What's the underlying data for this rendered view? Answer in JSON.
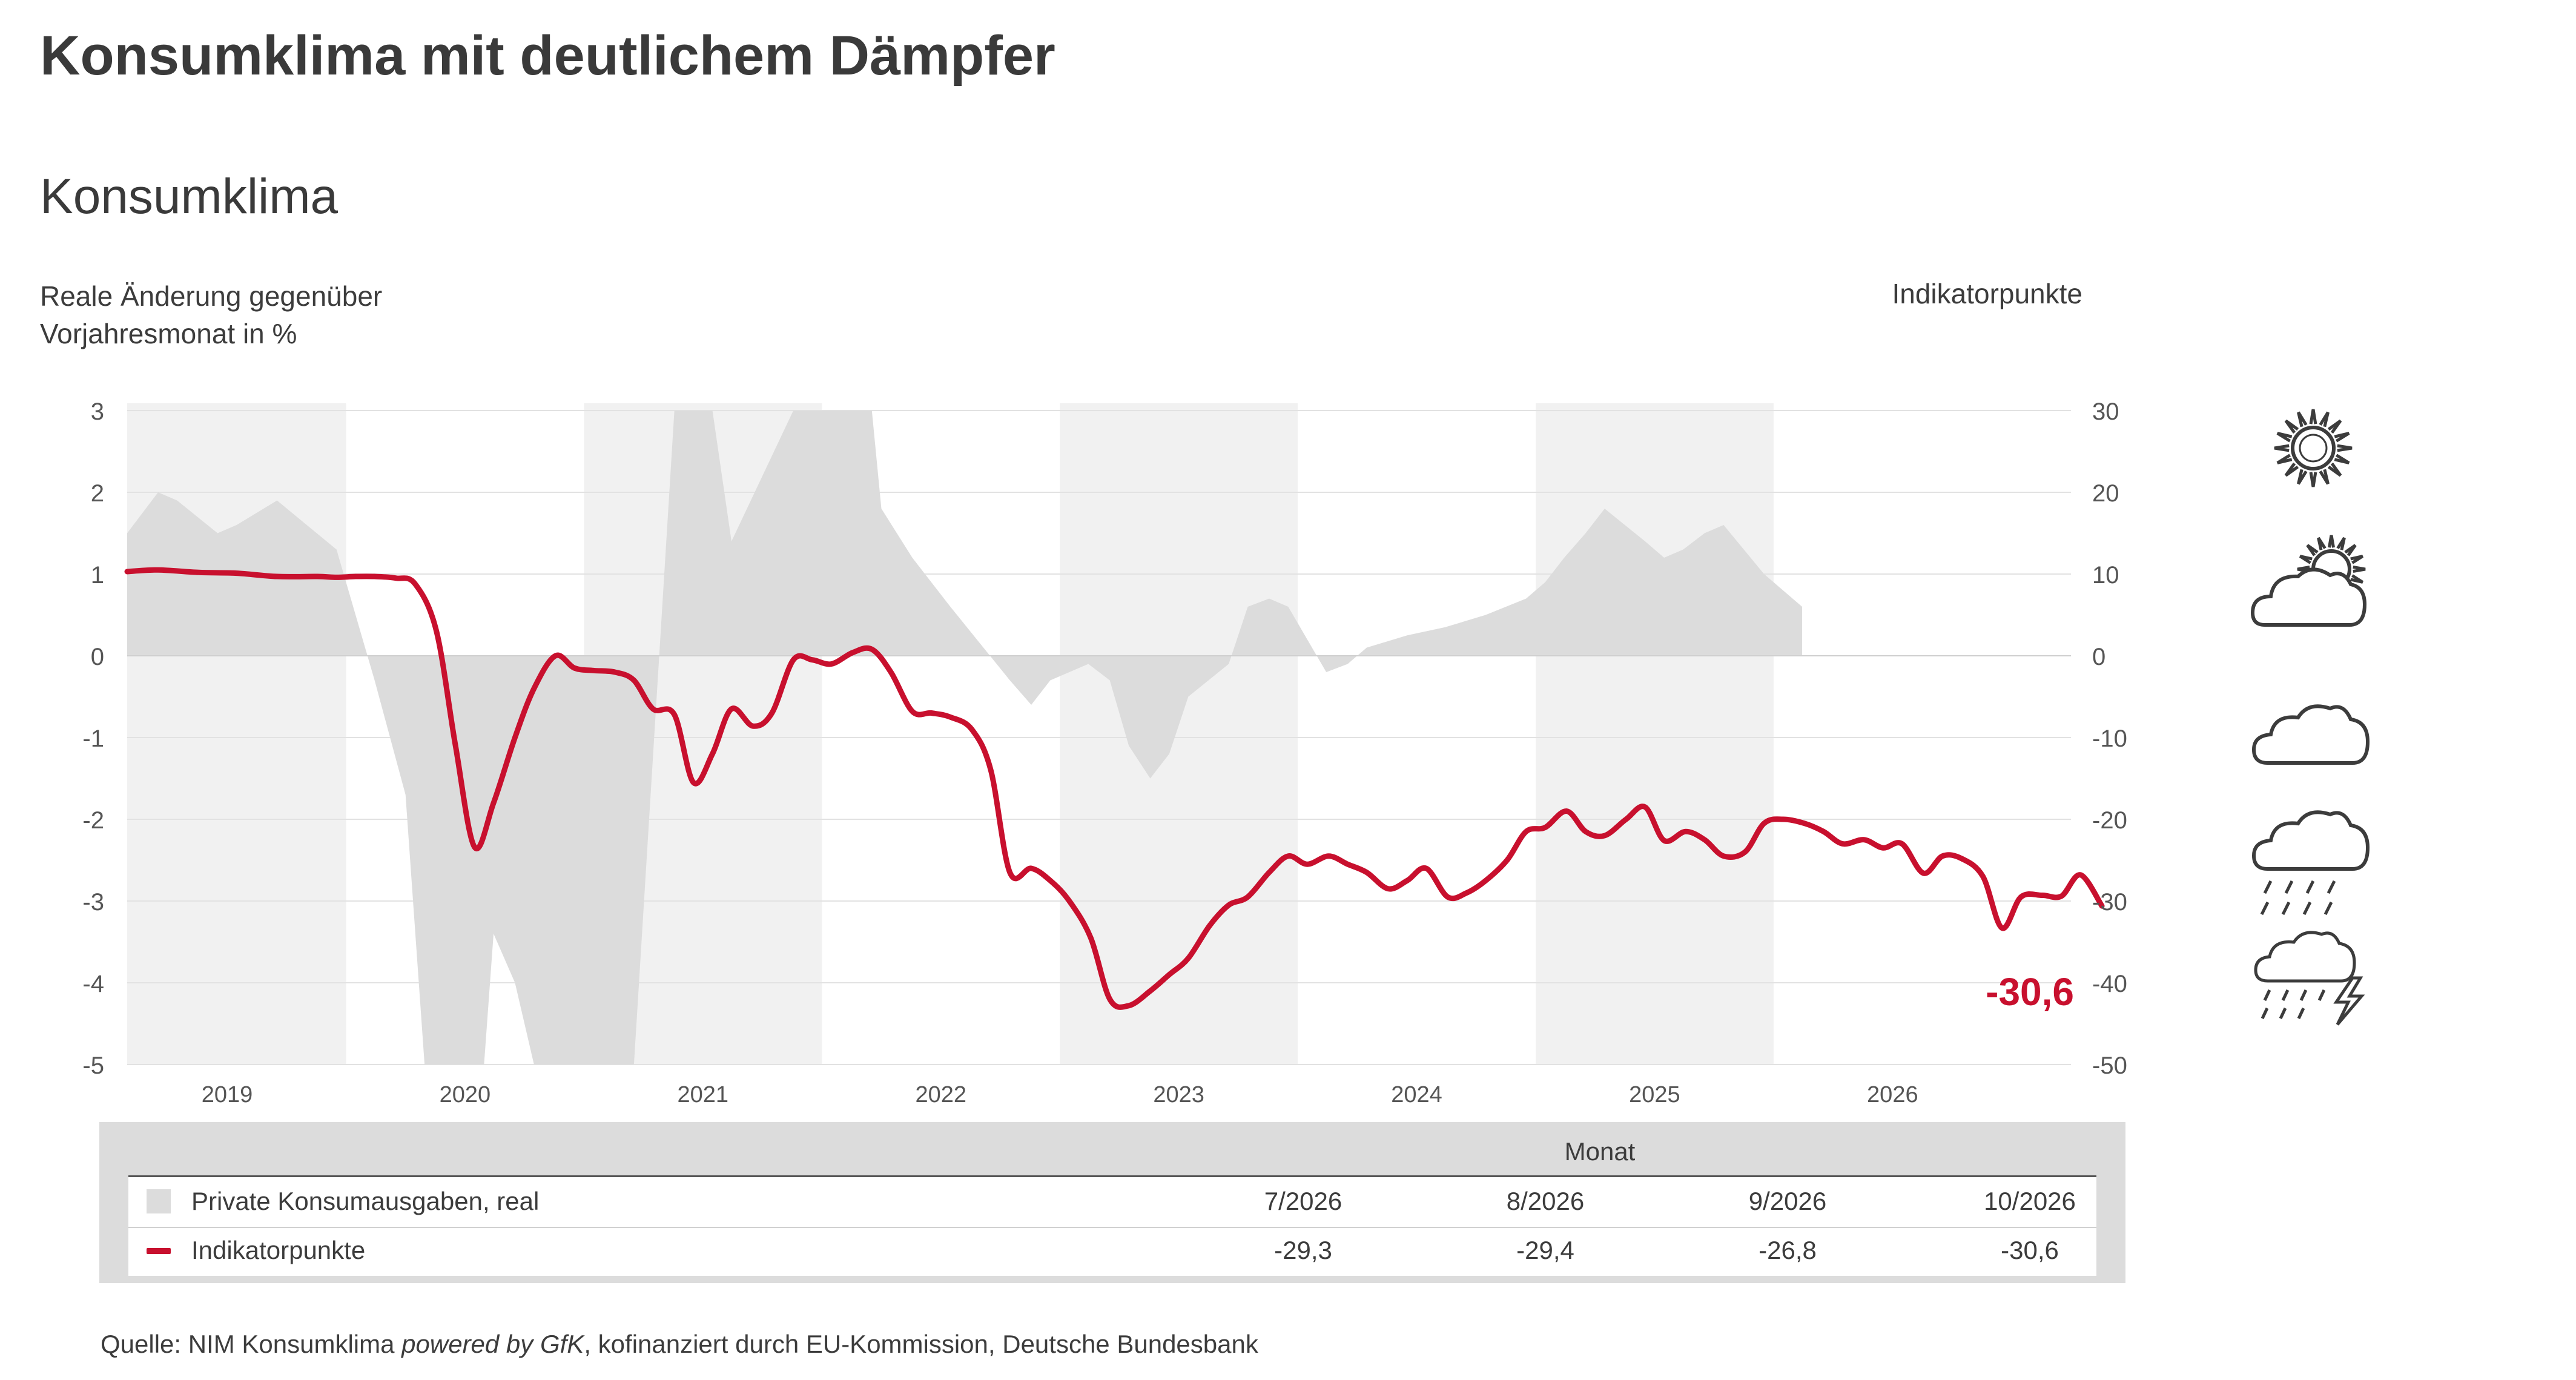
{
  "title": "Konsumklima mit deutlichem Dämpfer",
  "subtitle": "Konsumklima",
  "axis_left_label_line1": "Reale Änderung gegenüber",
  "axis_left_label_line2": "Vorjahresmonat in %",
  "axis_right_label": "Indikatorpunkte",
  "last_value_label": "-30,6",
  "colors": {
    "indicator_line": "#c8102e",
    "consumption_area": "#dcdcdc",
    "year_band": "#f1f1f1"
  },
  "chart_data": {
    "type": "line",
    "x_axis": {
      "range": [
        2018.58,
        2026.75
      ],
      "tick_labels": [
        "2019",
        "2020",
        "2021",
        "2022",
        "2023",
        "2024",
        "2025",
        "2026"
      ]
    },
    "y_left": {
      "range": [
        -5,
        3
      ],
      "tick_labels": [
        "3",
        "2",
        "1",
        "0",
        "-1",
        "-2",
        "-3",
        "-4",
        "-5"
      ]
    },
    "y_right": {
      "range": [
        -50,
        30
      ],
      "tick_labels": [
        "30",
        "20",
        "10",
        "0",
        "-10",
        "-20",
        "-30",
        "-40",
        "-50"
      ]
    },
    "grid": true,
    "shaded_years": [
      2019,
      2021,
      2023,
      2025
    ],
    "series": [
      {
        "name": "Private Konsumausgaben, real",
        "kind": "area",
        "axis": "left",
        "points": [
          [
            2018.58,
            1.5
          ],
          [
            2018.71,
            2.0
          ],
          [
            2018.79,
            1.9
          ],
          [
            2018.96,
            1.5
          ],
          [
            2019.04,
            1.6
          ],
          [
            2019.21,
            1.9
          ],
          [
            2019.46,
            1.3
          ],
          [
            2019.62,
            -0.3
          ],
          [
            2019.75,
            -1.7
          ],
          [
            2019.83,
            -5.0
          ],
          [
            2020.08,
            -5.0
          ],
          [
            2020.12,
            -3.4
          ],
          [
            2020.21,
            -4.0
          ],
          [
            2020.29,
            -5.0
          ],
          [
            2020.71,
            -5.0
          ],
          [
            2020.88,
            3.0
          ],
          [
            2021.04,
            3.0
          ],
          [
            2021.12,
            1.4
          ],
          [
            2021.38,
            3.0
          ],
          [
            2021.71,
            3.0
          ],
          [
            2021.75,
            1.8
          ],
          [
            2021.88,
            1.2
          ],
          [
            2022.04,
            0.6
          ],
          [
            2022.29,
            -0.3
          ],
          [
            2022.38,
            -0.6
          ],
          [
            2022.46,
            -0.3
          ],
          [
            2022.62,
            -0.1
          ],
          [
            2022.71,
            -0.3
          ],
          [
            2022.79,
            -1.1
          ],
          [
            2022.88,
            -1.5
          ],
          [
            2022.96,
            -1.2
          ],
          [
            2023.04,
            -0.5
          ],
          [
            2023.21,
            -0.1
          ],
          [
            2023.29,
            0.6
          ],
          [
            2023.38,
            0.7
          ],
          [
            2023.46,
            0.6
          ],
          [
            2023.62,
            -0.2
          ],
          [
            2023.71,
            -0.1
          ],
          [
            2023.79,
            0.1
          ],
          [
            2023.96,
            0.25
          ],
          [
            2024.12,
            0.35
          ],
          [
            2024.29,
            0.5
          ],
          [
            2024.46,
            0.7
          ],
          [
            2024.54,
            0.9
          ],
          [
            2024.62,
            1.2
          ],
          [
            2024.71,
            1.5
          ],
          [
            2024.79,
            1.8
          ],
          [
            2024.96,
            1.4
          ],
          [
            2025.04,
            1.2
          ],
          [
            2025.12,
            1.3
          ],
          [
            2025.21,
            1.5
          ],
          [
            2025.29,
            1.6
          ],
          [
            2025.46,
            1.0
          ],
          [
            2025.62,
            0.6
          ],
          [
            2025.62,
            0.0
          ]
        ]
      },
      {
        "name": "Indikatorpunkte",
        "kind": "line",
        "axis": "right",
        "points": [
          [
            2018.58,
            10.3
          ],
          [
            2018.71,
            10.5
          ],
          [
            2018.88,
            10.2
          ],
          [
            2019.04,
            10.1
          ],
          [
            2019.21,
            9.7
          ],
          [
            2019.38,
            9.7
          ],
          [
            2019.46,
            9.6
          ],
          [
            2019.54,
            9.7
          ],
          [
            2019.62,
            9.7
          ],
          [
            2019.71,
            9.5
          ],
          [
            2019.79,
            8.8
          ],
          [
            2019.88,
            3.0
          ],
          [
            2019.96,
            -11.0
          ],
          [
            2020.04,
            -23.4
          ],
          [
            2020.12,
            -18.0
          ],
          [
            2020.21,
            -10.0
          ],
          [
            2020.29,
            -4.0
          ],
          [
            2020.38,
            0.0
          ],
          [
            2020.46,
            -1.5
          ],
          [
            2020.54,
            -1.8
          ],
          [
            2020.63,
            -2.0
          ],
          [
            2020.71,
            -3.0
          ],
          [
            2020.79,
            -6.5
          ],
          [
            2020.88,
            -7.2
          ],
          [
            2020.96,
            -15.5
          ],
          [
            2021.04,
            -12.0
          ],
          [
            2021.12,
            -6.5
          ],
          [
            2021.21,
            -8.6
          ],
          [
            2021.29,
            -7.0
          ],
          [
            2021.38,
            -0.5
          ],
          [
            2021.46,
            -0.5
          ],
          [
            2021.54,
            -1.0
          ],
          [
            2021.63,
            0.4
          ],
          [
            2021.71,
            0.8
          ],
          [
            2021.79,
            -2.0
          ],
          [
            2021.88,
            -6.8
          ],
          [
            2021.96,
            -7.0
          ],
          [
            2022.04,
            -7.5
          ],
          [
            2022.13,
            -9.0
          ],
          [
            2022.21,
            -14.0
          ],
          [
            2022.29,
            -26.5
          ],
          [
            2022.38,
            -26.0
          ],
          [
            2022.46,
            -27.5
          ],
          [
            2022.54,
            -30.0
          ],
          [
            2022.63,
            -34.5
          ],
          [
            2022.71,
            -42.0
          ],
          [
            2022.79,
            -42.8
          ],
          [
            2022.88,
            -41.0
          ],
          [
            2022.96,
            -39.0
          ],
          [
            2023.04,
            -37.0
          ],
          [
            2023.13,
            -33.0
          ],
          [
            2023.21,
            -30.5
          ],
          [
            2023.29,
            -29.5
          ],
          [
            2023.38,
            -26.5
          ],
          [
            2023.46,
            -24.5
          ],
          [
            2023.54,
            -25.5
          ],
          [
            2023.63,
            -24.5
          ],
          [
            2023.71,
            -25.5
          ],
          [
            2023.79,
            -26.5
          ],
          [
            2023.88,
            -28.5
          ],
          [
            2023.96,
            -27.5
          ],
          [
            2024.04,
            -26.0
          ],
          [
            2024.13,
            -29.5
          ],
          [
            2024.21,
            -29.0
          ],
          [
            2024.29,
            -27.5
          ],
          [
            2024.38,
            -25.0
          ],
          [
            2024.46,
            -21.5
          ],
          [
            2024.54,
            -21.0
          ],
          [
            2024.63,
            -19.0
          ],
          [
            2024.71,
            -21.5
          ],
          [
            2024.79,
            -22.0
          ],
          [
            2024.88,
            -20.0
          ],
          [
            2024.96,
            -18.5
          ],
          [
            2025.04,
            -22.6
          ],
          [
            2025.13,
            -21.5
          ],
          [
            2025.21,
            -22.5
          ],
          [
            2025.29,
            -24.5
          ],
          [
            2025.38,
            -24.0
          ],
          [
            2025.46,
            -20.5
          ],
          [
            2025.54,
            -20.0
          ],
          [
            2025.63,
            -20.5
          ],
          [
            2025.71,
            -21.5
          ],
          [
            2025.79,
            -23.0
          ],
          [
            2025.88,
            -22.5
          ],
          [
            2025.96,
            -23.5
          ],
          [
            2026.04,
            -23.0
          ],
          [
            2026.13,
            -26.6
          ],
          [
            2026.21,
            -24.5
          ],
          [
            2026.29,
            -24.8
          ],
          [
            2026.38,
            -27.0
          ],
          [
            2026.46,
            -33.3
          ],
          [
            2026.54,
            -29.5
          ],
          [
            2026.63,
            -29.3
          ],
          [
            2026.71,
            -29.4
          ],
          [
            2026.79,
            -26.8
          ],
          [
            2026.88,
            -30.6
          ]
        ]
      }
    ]
  },
  "legend": {
    "header": "Monat",
    "columns": [
      "7/2026",
      "8/2026",
      "9/2026",
      "10/2026"
    ],
    "rows": [
      {
        "label": "Private Konsumausgaben, real",
        "values": [
          "",
          "",
          "",
          ""
        ]
      },
      {
        "label": "Indikatorpunkte",
        "values": [
          "-29,3",
          "-29,4",
          "-26,8",
          "-30,6"
        ]
      }
    ]
  },
  "source": {
    "prefix": "Quelle: NIM Konsumklima ",
    "italic": "powered by GfK",
    "suffix": ", kofinanziert durch EU-Kommission, Deutsche Bundesbank"
  },
  "weather_icons": [
    "sun-icon",
    "sun-behind-cloud-icon",
    "cloud-icon",
    "rain-cloud-icon",
    "thunderstorm-icon"
  ]
}
